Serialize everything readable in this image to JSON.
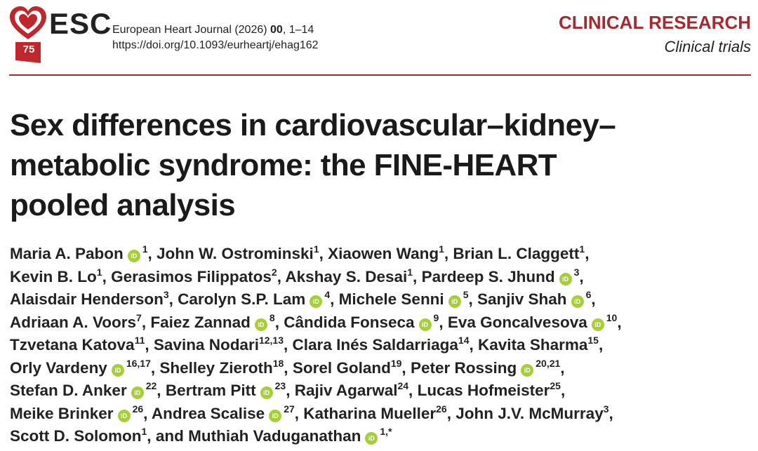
{
  "header": {
    "logo": "ESC",
    "badge": "75",
    "journal": "European Heart Journal (2026)",
    "volume": "00",
    "pages": ", 1–14",
    "doi": "https://doi.org/10.1093/eurheartj/ehag162",
    "section": "CLINICAL RESEARCH",
    "subsection": "Clinical trials"
  },
  "title_lines": [
    "Sex differences in cardiovascular–kidney–",
    "metabolic syndrome: the FINE-HEART",
    "pooled analysis"
  ],
  "separator": ",",
  "conjunction": "and",
  "orcid_label": "iD",
  "author_lines": [
    [
      {
        "name": "Maria A. Pabon",
        "orcid": true,
        "aff": "1"
      },
      {
        "name": "John W. Ostrominski",
        "orcid": false,
        "aff": "1"
      },
      {
        "name": "Xiaowen Wang",
        "orcid": false,
        "aff": "1"
      },
      {
        "name": "Brian L. Claggett",
        "orcid": false,
        "aff": "1"
      }
    ],
    [
      {
        "name": "Kevin B. Lo",
        "orcid": false,
        "aff": "1"
      },
      {
        "name": "Gerasimos Filippatos",
        "orcid": false,
        "aff": "2"
      },
      {
        "name": "Akshay S. Desai",
        "orcid": false,
        "aff": "1"
      },
      {
        "name": "Pardeep S. Jhund",
        "orcid": true,
        "aff": "3"
      }
    ],
    [
      {
        "name": "Alaisdair Henderson",
        "orcid": false,
        "aff": "3"
      },
      {
        "name": "Carolyn S.P. Lam",
        "orcid": true,
        "aff": "4"
      },
      {
        "name": "Michele Senni",
        "orcid": true,
        "aff": "5"
      },
      {
        "name": "Sanjiv Shah",
        "orcid": true,
        "aff": "6"
      }
    ],
    [
      {
        "name": "Adriaan A. Voors",
        "orcid": false,
        "aff": "7"
      },
      {
        "name": "Faiez Zannad",
        "orcid": true,
        "aff": "8"
      },
      {
        "name": "Cândida Fonseca",
        "orcid": true,
        "aff": "9"
      },
      {
        "name": "Eva Goncalvesova",
        "orcid": true,
        "aff": "10"
      }
    ],
    [
      {
        "name": "Tzvetana Katova",
        "orcid": false,
        "aff": "11"
      },
      {
        "name": "Savina Nodari",
        "orcid": false,
        "aff": "12,13"
      },
      {
        "name": "Clara Inés Saldarriaga",
        "orcid": false,
        "aff": "14"
      },
      {
        "name": "Kavita Sharma",
        "orcid": false,
        "aff": "15"
      }
    ],
    [
      {
        "name": "Orly Vardeny",
        "orcid": true,
        "aff": "16,17"
      },
      {
        "name": "Shelley Zieroth",
        "orcid": false,
        "aff": "18"
      },
      {
        "name": "Sorel Goland",
        "orcid": false,
        "aff": "19"
      },
      {
        "name": "Peter Rossing",
        "orcid": true,
        "aff": "20,21"
      }
    ],
    [
      {
        "name": "Stefan D. Anker",
        "orcid": true,
        "aff": "22"
      },
      {
        "name": "Bertram Pitt",
        "orcid": true,
        "aff": "23"
      },
      {
        "name": "Rajiv Agarwal",
        "orcid": false,
        "aff": "24"
      },
      {
        "name": "Lucas Hofmeister",
        "orcid": false,
        "aff": "25"
      }
    ],
    [
      {
        "name": "Meike Brinker",
        "orcid": true,
        "aff": "26"
      },
      {
        "name": "Andrea Scalise",
        "orcid": true,
        "aff": "27"
      },
      {
        "name": "Katharina Mueller",
        "orcid": false,
        "aff": "26"
      },
      {
        "name": "John J.V. McMurray",
        "orcid": false,
        "aff": "3"
      }
    ],
    [
      {
        "name": "Scott D. Solomon",
        "orcid": false,
        "aff": "1"
      },
      {
        "name": "Muthiah Vaduganathan",
        "orcid": true,
        "aff": "1,*"
      }
    ]
  ]
}
